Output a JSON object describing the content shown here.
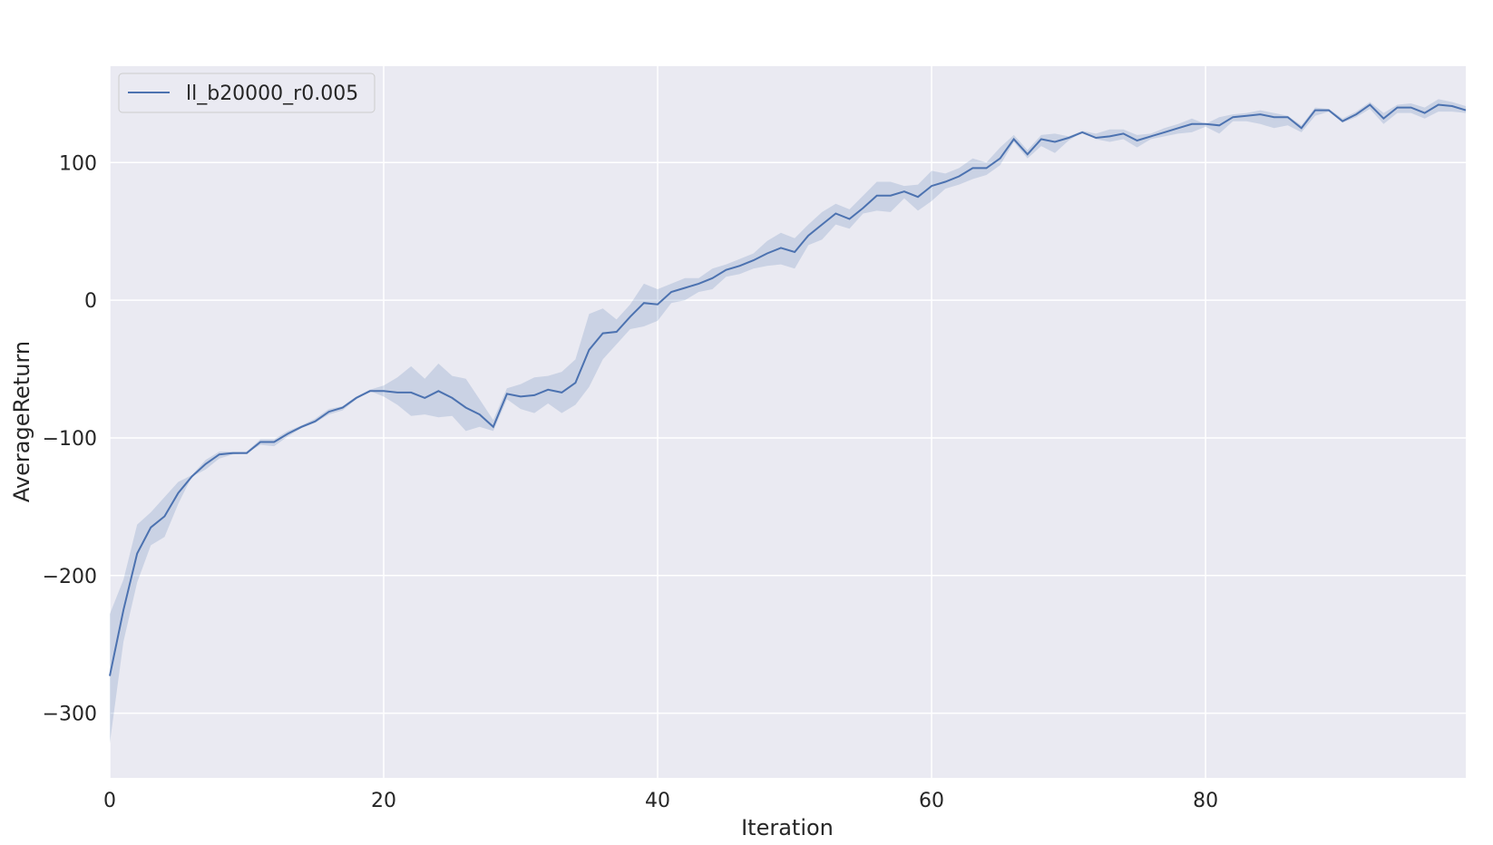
{
  "chart_data": {
    "type": "line",
    "xlabel": "Iteration",
    "ylabel": "AverageReturn",
    "xlim": [
      0,
      99
    ],
    "ylim": [
      -347,
      170
    ],
    "xticks": [
      0,
      20,
      40,
      60,
      80
    ],
    "yticks": [
      -300,
      -200,
      -100,
      0,
      100
    ],
    "xtick_labels": [
      "0",
      "20",
      "40",
      "60",
      "80"
    ],
    "ytick_labels": [
      "−300",
      "−200",
      "−100",
      "0",
      "100"
    ],
    "grid": true,
    "background": "#eaeaf2",
    "legend": {
      "position": "top-left"
    },
    "series": [
      {
        "name": "ll_b20000_r0.005",
        "color": "#4c72b0",
        "band_color": "#4c72b0",
        "x": [
          0,
          1,
          2,
          3,
          4,
          5,
          6,
          7,
          8,
          9,
          10,
          11,
          12,
          13,
          14,
          15,
          16,
          17,
          18,
          19,
          20,
          21,
          22,
          23,
          24,
          25,
          26,
          27,
          28,
          29,
          30,
          31,
          32,
          33,
          34,
          35,
          36,
          37,
          38,
          39,
          40,
          41,
          42,
          43,
          44,
          45,
          46,
          47,
          48,
          49,
          50,
          51,
          52,
          53,
          54,
          55,
          56,
          57,
          58,
          59,
          60,
          61,
          62,
          63,
          64,
          65,
          66,
          67,
          68,
          69,
          70,
          71,
          72,
          73,
          74,
          75,
          76,
          77,
          78,
          79,
          80,
          81,
          82,
          83,
          84,
          85,
          86,
          87,
          88,
          89,
          90,
          91,
          92,
          93,
          94,
          95,
          96,
          97,
          98,
          99
        ],
        "y": [
          -273,
          -225,
          -184,
          -165,
          -157,
          -140,
          -128,
          -119,
          -112,
          -111,
          -111,
          -103,
          -103,
          -97,
          -92,
          -88,
          -81,
          -78,
          -71,
          -66,
          -66,
          -67,
          -67,
          -71,
          -66,
          -71,
          -78,
          -83,
          -92,
          -68,
          -70,
          -69,
          -65,
          -67,
          -60,
          -36,
          -24,
          -23,
          -12,
          -2,
          -3,
          6,
          9,
          12,
          16,
          22,
          25,
          29,
          34,
          38,
          35,
          47,
          55,
          63,
          59,
          67,
          76,
          76,
          79,
          75,
          83,
          86,
          90,
          96,
          96,
          103,
          117,
          106,
          117,
          115,
          118,
          122,
          118,
          119,
          121,
          116,
          119,
          122,
          125,
          128,
          128,
          127,
          133,
          134,
          135,
          133,
          133,
          125,
          138,
          138,
          130,
          135,
          142,
          132,
          140,
          140,
          136,
          142,
          141,
          138
        ],
        "y_lower": [
          -322,
          -248,
          -205,
          -178,
          -172,
          -148,
          -128,
          -123,
          -115,
          -112,
          -111,
          -105,
          -106,
          -99,
          -93,
          -89,
          -83,
          -80,
          -72,
          -66,
          -70,
          -76,
          -84,
          -83,
          -85,
          -84,
          -95,
          -92,
          -95,
          -72,
          -79,
          -82,
          -75,
          -82,
          -76,
          -63,
          -43,
          -32,
          -21,
          -19,
          -15,
          -2,
          0,
          6,
          8,
          17,
          19,
          23,
          25,
          26,
          23,
          40,
          44,
          55,
          52,
          63,
          65,
          64,
          74,
          65,
          72,
          81,
          84,
          88,
          91,
          98,
          115,
          103,
          112,
          107,
          116,
          122,
          117,
          115,
          117,
          111,
          117,
          119,
          121,
          122,
          126,
          121,
          130,
          130,
          128,
          125,
          127,
          122,
          134,
          137,
          129,
          133,
          139,
          128,
          136,
          136,
          132,
          137,
          137,
          136
        ],
        "y_upper": [
          -228,
          -203,
          -163,
          -154,
          -143,
          -132,
          -127,
          -116,
          -110,
          -110,
          -110,
          -101,
          -101,
          -95,
          -91,
          -86,
          -79,
          -77,
          -70,
          -65,
          -62,
          -56,
          -48,
          -57,
          -46,
          -55,
          -57,
          -72,
          -87,
          -64,
          -61,
          -56,
          -55,
          -52,
          -43,
          -10,
          -6,
          -14,
          -3,
          12,
          8,
          12,
          16,
          16,
          23,
          26,
          30,
          34,
          43,
          49,
          45,
          55,
          64,
          70,
          66,
          76,
          86,
          86,
          83,
          84,
          94,
          92,
          96,
          103,
          100,
          111,
          120,
          109,
          120,
          121,
          119,
          123,
          121,
          124,
          124,
          120,
          121,
          125,
          128,
          132,
          128,
          133,
          135,
          136,
          138,
          136,
          134,
          127,
          140,
          139,
          132,
          137,
          144,
          136,
          142,
          143,
          140,
          146,
          144,
          141
        ]
      }
    ]
  }
}
